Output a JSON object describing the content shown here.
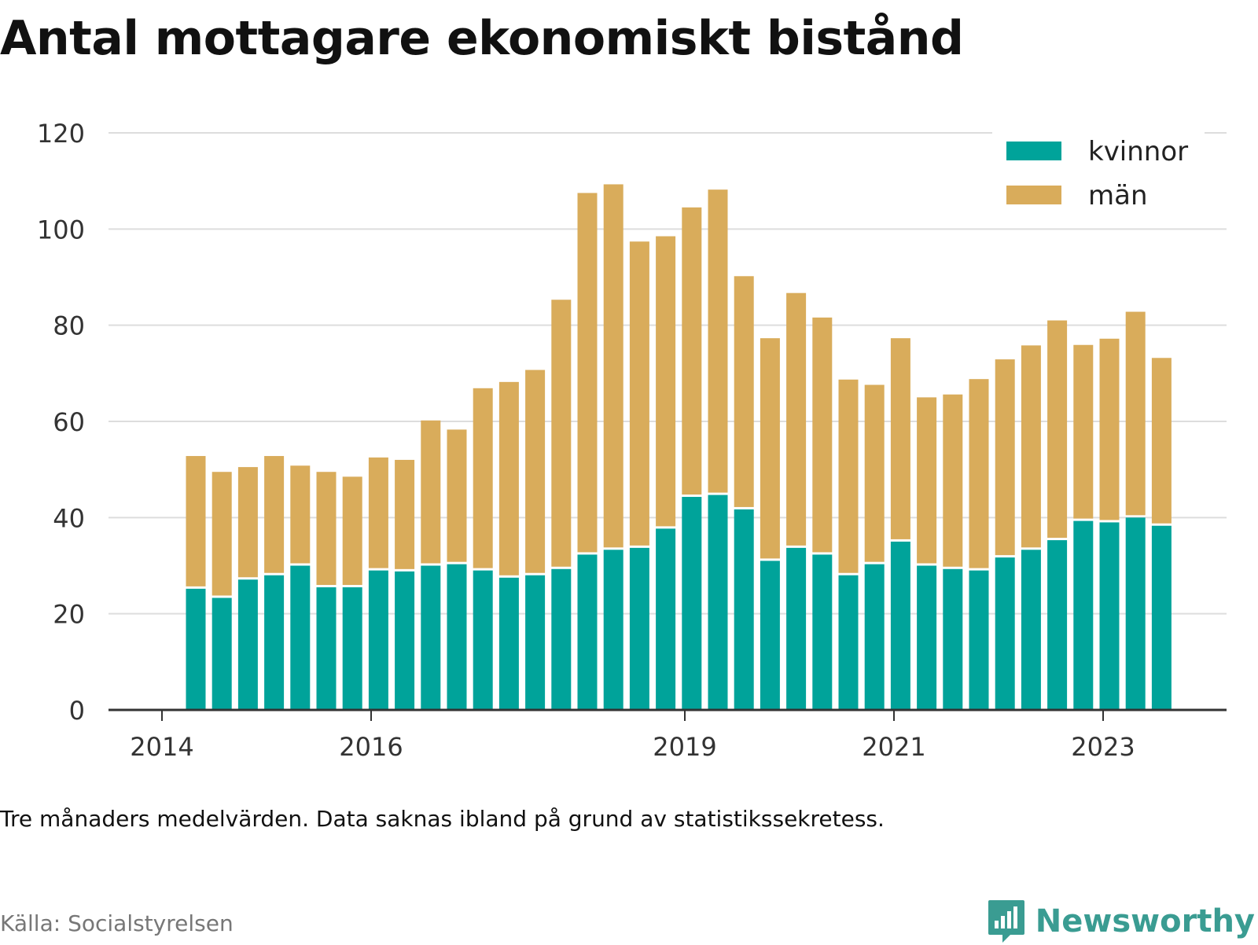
{
  "title": "Antal mottagare ekonomiskt bistånd",
  "note": "Tre månaders medelvärden. Data saknas ibland på grund av statistikssekretess.",
  "source": "Källa: Socialstyrelsen",
  "brand": "Newsworthy",
  "colors": {
    "kvinnor": "#00a39a",
    "man": "#d9ac5b",
    "grid": "#dddddd",
    "axis": "#333333"
  },
  "chart_data": {
    "type": "bar",
    "stacked": true,
    "ylim": [
      0,
      120
    ],
    "yticks": [
      0,
      20,
      40,
      60,
      80,
      100,
      120
    ],
    "xticks": [
      "2014",
      "2016",
      "2019",
      "2021",
      "2023"
    ],
    "grid": true,
    "legend": "top-right",
    "categories": [
      "2014-Q2",
      "2014-Q3",
      "2014-Q4",
      "2015-Q1",
      "2015-Q2",
      "2015-Q3",
      "2015-Q4",
      "2016-Q1",
      "2016-Q2",
      "2016-Q3",
      "2016-Q4",
      "2017-Q1",
      "2017-Q2",
      "2017-Q3",
      "2017-Q4",
      "2018-Q1",
      "2018-Q2",
      "2018-Q3",
      "2018-Q4",
      "2019-Q1",
      "2019-Q2",
      "2019-Q3",
      "2019-Q4",
      "2020-Q1",
      "2020-Q2",
      "2020-Q3",
      "2020-Q4",
      "2021-Q1",
      "2021-Q2",
      "2021-Q3",
      "2021-Q4",
      "2022-Q1",
      "2022-Q2",
      "2022-Q3",
      "2022-Q4",
      "2023-Q1",
      "2023-Q2",
      "2023-Q3"
    ],
    "series": [
      {
        "name": "kvinnor",
        "values": [
          25.2,
          23.3,
          27.1,
          28.0,
          30.0,
          25.5,
          25.5,
          29.0,
          28.8,
          30.0,
          30.3,
          29.0,
          27.5,
          28.0,
          29.3,
          32.3,
          33.3,
          33.7,
          37.7,
          44.3,
          44.7,
          41.7,
          31.0,
          33.7,
          32.3,
          28.0,
          30.3,
          35.0,
          30.0,
          29.3,
          29.0,
          31.7,
          33.3,
          35.3,
          39.3,
          39.0,
          40.0,
          38.3
        ]
      },
      {
        "name": "män",
        "values": [
          27.6,
          26.2,
          23.4,
          24.8,
          20.8,
          24.0,
          23.0,
          23.5,
          23.2,
          30.2,
          28.0,
          37.9,
          40.7,
          42.7,
          56.0,
          75.2,
          76.0,
          63.7,
          60.8,
          60.2,
          63.5,
          48.5,
          46.3,
          53.0,
          49.3,
          40.7,
          37.3,
          42.3,
          35.0,
          36.3,
          39.8,
          41.2,
          42.5,
          45.7,
          36.6,
          38.2,
          42.8,
          34.9
        ]
      }
    ]
  }
}
